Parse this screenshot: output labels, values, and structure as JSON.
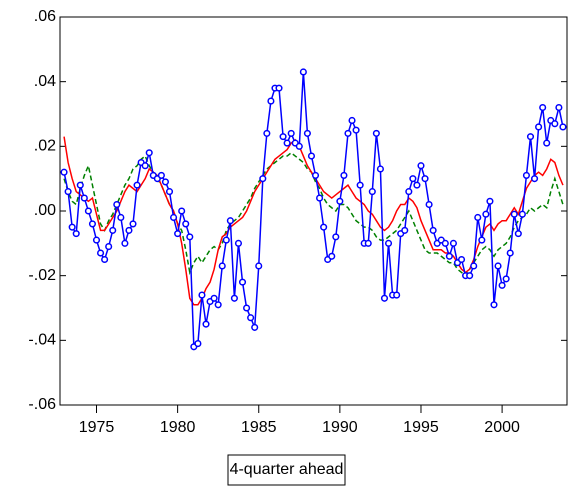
{
  "chart_data": {
    "type": "line",
    "x_label": "4-quarter ahead",
    "x": [
      1973,
      1973.25,
      1973.5,
      1973.75,
      1974,
      1974.25,
      1974.5,
      1974.75,
      1975,
      1975.25,
      1975.5,
      1975.75,
      1976,
      1976.25,
      1976.5,
      1976.75,
      1977,
      1977.25,
      1977.5,
      1977.75,
      1978,
      1978.25,
      1978.5,
      1978.75,
      1979,
      1979.25,
      1979.5,
      1979.75,
      1980,
      1980.25,
      1980.5,
      1980.75,
      1981,
      1981.25,
      1981.5,
      1981.75,
      1982,
      1982.25,
      1982.5,
      1982.75,
      1983,
      1983.25,
      1983.5,
      1983.75,
      1984,
      1984.25,
      1984.5,
      1984.75,
      1985,
      1985.25,
      1985.5,
      1985.75,
      1986,
      1986.25,
      1986.5,
      1986.75,
      1987,
      1987.25,
      1987.5,
      1987.75,
      1988,
      1988.25,
      1988.5,
      1988.75,
      1989,
      1989.25,
      1989.5,
      1989.75,
      1990,
      1990.25,
      1990.5,
      1990.75,
      1991,
      1991.25,
      1991.5,
      1991.75,
      1992,
      1992.25,
      1992.5,
      1992.75,
      1993,
      1993.25,
      1993.5,
      1993.75,
      1994,
      1994.25,
      1994.5,
      1994.75,
      1995,
      1995.25,
      1995.5,
      1995.75,
      1996,
      1996.25,
      1996.5,
      1996.75,
      1997,
      1997.25,
      1997.5,
      1997.75,
      1998,
      1998.25,
      1998.5,
      1998.75,
      1999,
      1999.25,
      1999.5,
      1999.75,
      2000,
      2000.25,
      2000.5,
      2000.75,
      2001,
      2001.25,
      2001.5,
      2001.75,
      2002,
      2002.25,
      2002.5,
      2002.75,
      2003,
      2003.25,
      2003.5,
      2003.75
    ],
    "series": [
      {
        "color": "#0000ff",
        "markers": true,
        "dashed": false,
        "values": [
          0.012,
          0.006,
          -0.005,
          -0.007,
          0.008,
          0.004,
          0.0,
          -0.004,
          -0.009,
          -0.013,
          -0.015,
          -0.011,
          -0.006,
          0.002,
          -0.002,
          -0.01,
          -0.006,
          -0.004,
          0.008,
          0.015,
          0.014,
          0.018,
          0.011,
          0.01,
          0.011,
          0.009,
          0.006,
          -0.002,
          -0.007,
          0.0,
          -0.004,
          -0.008,
          -0.042,
          -0.041,
          -0.026,
          -0.035,
          -0.028,
          -0.027,
          -0.029,
          -0.017,
          -0.009,
          -0.003,
          -0.027,
          -0.01,
          -0.022,
          -0.03,
          -0.033,
          -0.036,
          -0.017,
          0.01,
          0.024,
          0.034,
          0.038,
          0.038,
          0.023,
          0.021,
          0.024,
          0.021,
          0.02,
          0.043,
          0.024,
          0.017,
          0.011,
          0.004,
          -0.005,
          -0.015,
          -0.014,
          -0.008,
          0.003,
          0.011,
          0.024,
          0.028,
          0.025,
          0.008,
          -0.01,
          -0.01,
          0.006,
          0.024,
          0.013,
          -0.027,
          -0.01,
          -0.026,
          -0.026,
          -0.007,
          -0.006,
          0.006,
          0.01,
          0.008,
          0.014,
          0.01,
          0.002,
          -0.006,
          -0.01,
          -0.009,
          -0.01,
          -0.014,
          -0.01,
          -0.016,
          -0.015,
          -0.02,
          -0.02,
          -0.017,
          -0.002,
          -0.009,
          -0.001,
          0.003,
          -0.029,
          -0.017,
          -0.023,
          -0.021,
          -0.013,
          -0.001,
          -0.007,
          -0.001,
          0.011,
          0.023,
          0.01,
          0.026,
          0.032,
          0.021,
          0.028,
          0.027,
          0.032,
          0.026
        ]
      },
      {
        "color": "#ff0000",
        "markers": false,
        "dashed": false,
        "values": [
          0.023,
          0.015,
          0.01,
          0.006,
          0.005,
          0.004,
          0.003,
          0.004,
          -0.001,
          -0.006,
          -0.006,
          -0.004,
          -0.002,
          0.0,
          0.003,
          0.006,
          0.008,
          0.007,
          0.006,
          0.008,
          0.01,
          0.013,
          0.012,
          0.011,
          0.008,
          0.005,
          0.002,
          0.0,
          -0.004,
          -0.01,
          -0.018,
          -0.027,
          -0.029,
          -0.029,
          -0.027,
          -0.024,
          -0.022,
          -0.018,
          -0.012,
          -0.008,
          -0.007,
          -0.005,
          -0.004,
          -0.003,
          -0.002,
          0.0,
          0.003,
          0.006,
          0.008,
          0.01,
          0.012,
          0.014,
          0.016,
          0.017,
          0.018,
          0.019,
          0.021,
          0.022,
          0.02,
          0.017,
          0.014,
          0.012,
          0.01,
          0.008,
          0.006,
          0.005,
          0.004,
          0.005,
          0.006,
          0.007,
          0.008,
          0.006,
          0.004,
          0.003,
          0.002,
          0.0,
          -0.001,
          -0.003,
          -0.005,
          -0.006,
          -0.005,
          -0.003,
          0.0,
          0.002,
          0.002,
          0.004,
          0.003,
          0.001,
          -0.003,
          -0.006,
          -0.009,
          -0.012,
          -0.012,
          -0.012,
          -0.013,
          -0.013,
          -0.014,
          -0.016,
          -0.018,
          -0.019,
          -0.018,
          -0.015,
          -0.011,
          -0.008,
          -0.005,
          -0.004,
          -0.006,
          -0.004,
          -0.003,
          -0.003,
          -0.001,
          0.001,
          -0.001,
          0.003,
          0.007,
          0.009,
          0.011,
          0.012,
          0.011,
          0.013,
          0.016,
          0.015,
          0.011,
          0.008
        ]
      },
      {
        "color": "#008000",
        "markers": false,
        "dashed": true,
        "values": [
          0.01,
          0.006,
          0.003,
          0.002,
          0.007,
          0.011,
          0.014,
          0.008,
          0.002,
          -0.004,
          -0.006,
          -0.003,
          -0.001,
          0.002,
          0.005,
          0.008,
          0.01,
          0.013,
          0.014,
          0.016,
          0.017,
          0.014,
          0.012,
          0.01,
          0.008,
          0.005,
          0.002,
          0.0,
          -0.004,
          -0.006,
          -0.012,
          -0.019,
          -0.016,
          -0.014,
          -0.016,
          -0.014,
          -0.012,
          -0.011,
          -0.012,
          -0.01,
          -0.006,
          -0.004,
          -0.003,
          -0.002,
          0.0,
          0.002,
          0.004,
          0.007,
          0.009,
          0.011,
          0.013,
          0.014,
          0.015,
          0.016,
          0.017,
          0.017,
          0.018,
          0.017,
          0.016,
          0.015,
          0.013,
          0.012,
          0.009,
          0.007,
          0.004,
          0.002,
          0.001,
          0.0,
          0.002,
          0.002,
          0.001,
          -0.001,
          -0.003,
          -0.004,
          -0.005,
          -0.005,
          -0.006,
          -0.008,
          -0.009,
          -0.009,
          -0.008,
          -0.007,
          -0.006,
          -0.004,
          -0.002,
          0.0,
          -0.003,
          -0.006,
          -0.009,
          -0.012,
          -0.013,
          -0.013,
          -0.013,
          -0.014,
          -0.015,
          -0.016,
          -0.016,
          -0.018,
          -0.019,
          -0.02,
          -0.018,
          -0.016,
          -0.014,
          -0.012,
          -0.011,
          -0.012,
          -0.014,
          -0.012,
          -0.011,
          -0.01,
          -0.008,
          -0.005,
          -0.003,
          -0.002,
          -0.001,
          0.001,
          0.0,
          0.001,
          0.002,
          0.001,
          0.006,
          0.01,
          0.006,
          0.002
        ]
      }
    ],
    "xlim": [
      1972.75,
      2004.0
    ],
    "ylim": [
      -0.06,
      0.06
    ],
    "xticks": [
      1975,
      1980,
      1985,
      1990,
      1995,
      2000
    ],
    "yticks": [
      {
        "value": -0.06,
        "label": "-.06"
      },
      {
        "value": -0.04,
        "label": "-.04"
      },
      {
        "value": -0.02,
        "label": "-.02"
      },
      {
        "value": 0,
        "label": ".00"
      },
      {
        "value": 0.02,
        "label": ".02"
      },
      {
        "value": 0.04,
        "label": ".04"
      },
      {
        "value": 0.06,
        "label": ".06"
      }
    ]
  }
}
